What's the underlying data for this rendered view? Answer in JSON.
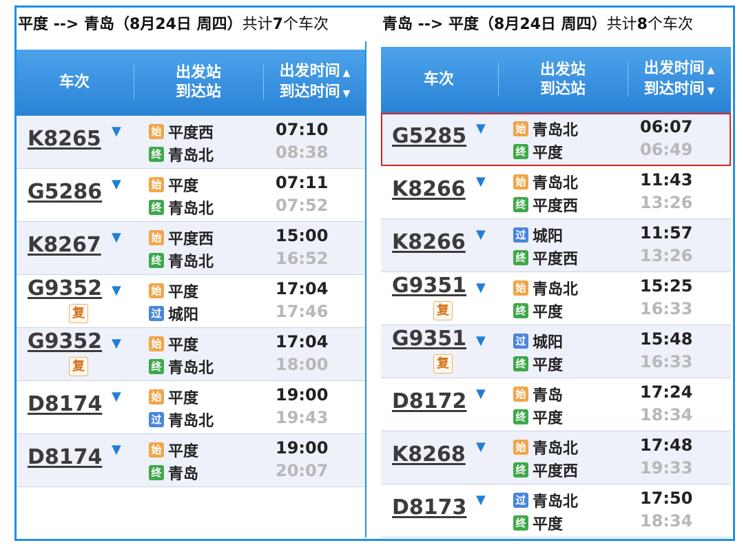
{
  "left": {
    "title": "平度 --> 青岛（8月24日  周四）",
    "count_prefix": "共计",
    "count_num": "7",
    "count_suffix": "个车次",
    "header": {
      "col_train": "车次",
      "col_depart_station": "出发站",
      "col_arrive_station": "到达站",
      "col_depart_time": "出发时间",
      "col_arrive_time": "到达时间"
    },
    "rows": [
      {
        "train": "K8265",
        "fu": "",
        "from_icon": "始",
        "from_type": "start",
        "from": "平度西",
        "to_icon": "终",
        "to_type": "end",
        "to": "青岛北",
        "dep": "07:10",
        "arr": "08:38"
      },
      {
        "train": "G5286",
        "fu": "",
        "from_icon": "始",
        "from_type": "start",
        "from": "平度",
        "to_icon": "终",
        "to_type": "end",
        "to": "青岛北",
        "dep": "07:11",
        "arr": "07:52"
      },
      {
        "train": "K8267",
        "fu": "",
        "from_icon": "始",
        "from_type": "start",
        "from": "平度西",
        "to_icon": "终",
        "to_type": "end",
        "to": "青岛北",
        "dep": "15:00",
        "arr": "16:52"
      },
      {
        "train": "G9352",
        "fu": "复",
        "from_icon": "始",
        "from_type": "start",
        "from": "平度",
        "to_icon": "过",
        "to_type": "pass",
        "to": "城阳",
        "dep": "17:04",
        "arr": "17:46"
      },
      {
        "train": "G9352",
        "fu": "复",
        "from_icon": "始",
        "from_type": "start",
        "from": "平度",
        "to_icon": "终",
        "to_type": "end",
        "to": "青岛北",
        "dep": "17:04",
        "arr": "18:00"
      },
      {
        "train": "D8174",
        "fu": "",
        "from_icon": "始",
        "from_type": "start",
        "from": "平度",
        "to_icon": "过",
        "to_type": "pass",
        "to": "青岛北",
        "dep": "19:00",
        "arr": "19:43"
      },
      {
        "train": "D8174",
        "fu": "",
        "from_icon": "始",
        "from_type": "start",
        "from": "平度",
        "to_icon": "终",
        "to_type": "end",
        "to": "青岛",
        "dep": "19:00",
        "arr": "20:07"
      }
    ]
  },
  "right": {
    "title": "青岛 --> 平度（8月24日  周四）",
    "count_prefix": "共计",
    "count_num": "8",
    "count_suffix": "个车次",
    "header": {
      "col_train": "车次",
      "col_depart_station": "出发站",
      "col_arrive_station": "到达站",
      "col_depart_time": "出发时间",
      "col_arrive_time": "到达时间"
    },
    "rows": [
      {
        "train": "G5285",
        "fu": "",
        "from_icon": "始",
        "from_type": "start",
        "from": "青岛北",
        "to_icon": "终",
        "to_type": "end",
        "to": "平度",
        "dep": "06:07",
        "arr": "06:49",
        "highlight": true
      },
      {
        "train": "K8266",
        "fu": "",
        "from_icon": "始",
        "from_type": "start",
        "from": "青岛北",
        "to_icon": "终",
        "to_type": "end",
        "to": "平度西",
        "dep": "11:43",
        "arr": "13:26"
      },
      {
        "train": "K8266",
        "fu": "",
        "from_icon": "过",
        "from_type": "pass",
        "from": "城阳",
        "to_icon": "终",
        "to_type": "end",
        "to": "平度西",
        "dep": "11:57",
        "arr": "13:26"
      },
      {
        "train": "G9351",
        "fu": "复",
        "from_icon": "始",
        "from_type": "start",
        "from": "青岛北",
        "to_icon": "终",
        "to_type": "end",
        "to": "平度",
        "dep": "15:25",
        "arr": "16:33"
      },
      {
        "train": "G9351",
        "fu": "复",
        "from_icon": "过",
        "from_type": "pass",
        "from": "城阳",
        "to_icon": "终",
        "to_type": "end",
        "to": "平度",
        "dep": "15:48",
        "arr": "16:33"
      },
      {
        "train": "D8172",
        "fu": "",
        "from_icon": "始",
        "from_type": "start",
        "from": "青岛",
        "to_icon": "终",
        "to_type": "end",
        "to": "平度",
        "dep": "17:24",
        "arr": "18:34"
      },
      {
        "train": "K8268",
        "fu": "",
        "from_icon": "始",
        "from_type": "start",
        "from": "青岛北",
        "to_icon": "终",
        "to_type": "end",
        "to": "平度西",
        "dep": "17:48",
        "arr": "19:33"
      },
      {
        "train": "D8173",
        "fu": "",
        "from_icon": "过",
        "from_type": "pass",
        "from": "青岛北",
        "to_icon": "终",
        "to_type": "end",
        "to": "平度",
        "dep": "17:50",
        "arr": "18:34"
      }
    ]
  }
}
